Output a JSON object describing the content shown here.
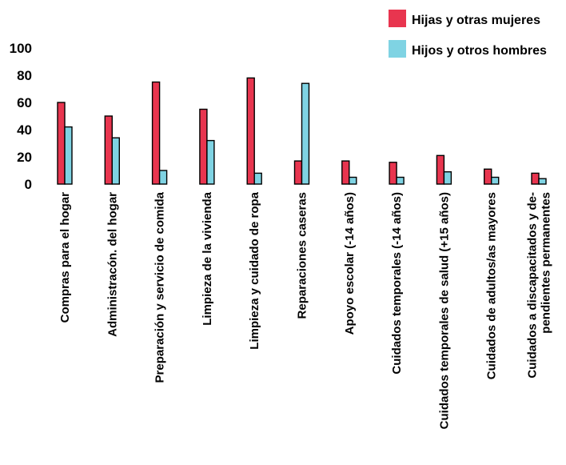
{
  "chart_data": {
    "type": "bar",
    "title": "",
    "xlabel": "",
    "ylabel": "",
    "ylim": [
      0,
      100
    ],
    "yticks": [
      0,
      20,
      40,
      60,
      80,
      100
    ],
    "grid": false,
    "legend_position": "top-right",
    "categories": [
      "Compras para el hogar",
      "Administracón. del hogar",
      "Preparación y servicio de comida",
      "Limpieza de la vivienda",
      "Limpieza y cuidado de ropa",
      "Reparaciones caseras",
      "Apoyo escolar (-14 años)",
      "Cuidados temporales (-14 años)",
      "Cuidados temporales de salud (+15 años)",
      "Cuidados de adultos/as mayores",
      "Cuidados a discapacitados y de-\npendientes permanentes"
    ],
    "series": [
      {
        "name": "Hijas y otras mujeres",
        "color": "#e8354f",
        "values": [
          60,
          50,
          75,
          55,
          78,
          17,
          17,
          16,
          21,
          11,
          8
        ]
      },
      {
        "name": "Hijos y otros hombres",
        "color": "#7fd3e3",
        "values": [
          42,
          34,
          10,
          32,
          8,
          74,
          5,
          5,
          9,
          5,
          4
        ]
      }
    ]
  }
}
